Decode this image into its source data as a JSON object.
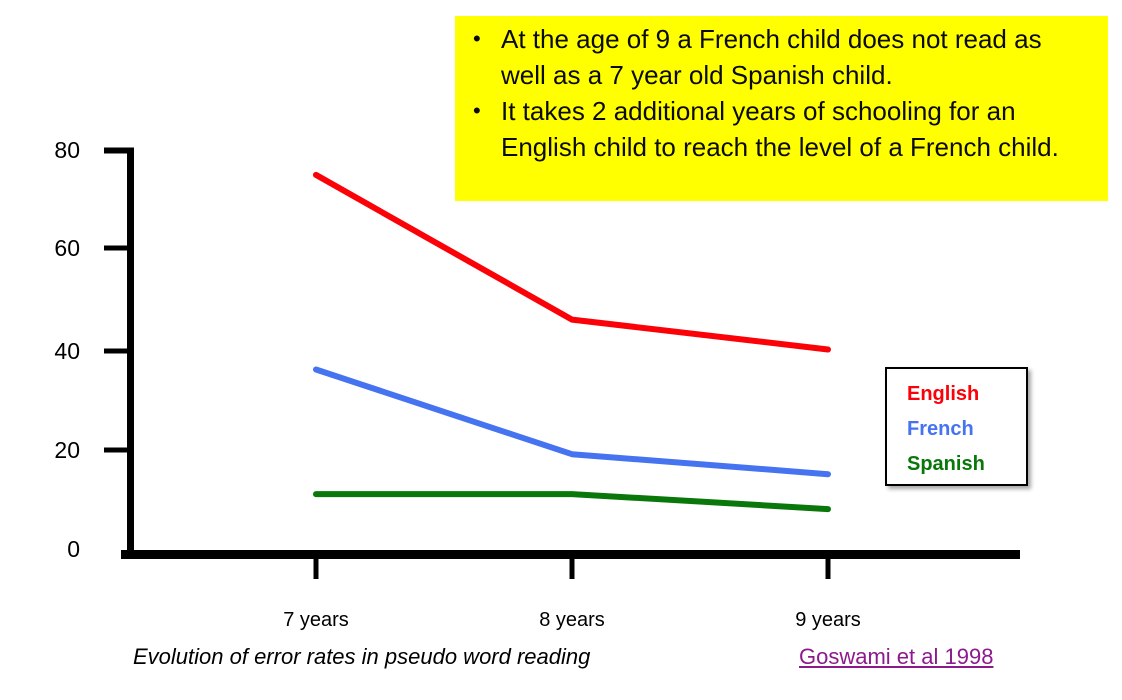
{
  "callout": {
    "bg_color": "#ffff00",
    "bullet_glyph": "•",
    "bullets": [
      "At the age of 9 a French child does not read as well as a 7 year old Spanish child.",
      "It takes 2 additional years of schooling for an English child to reach the level of a French child."
    ]
  },
  "chart_data": {
    "type": "line",
    "title": "",
    "caption": "Evolution of error rates in pseudo word reading",
    "x_categories": [
      "7 years",
      "8 years",
      "9 years"
    ],
    "series": [
      {
        "name": "English",
        "color": "#fa0208",
        "values": [
          75,
          46,
          40
        ]
      },
      {
        "name": "French",
        "color": "#4673f0",
        "values": [
          36,
          19,
          15
        ]
      },
      {
        "name": "Spanish",
        "color": "#097709",
        "values": [
          11,
          11,
          8
        ]
      }
    ],
    "y_ticks": [
      0,
      20,
      40,
      60,
      80
    ],
    "ylim": [
      0,
      80
    ],
    "grid": false,
    "legend_position": "right",
    "axis_color": "#000000"
  },
  "citation": {
    "label": "Goswami et al 1998",
    "color": "#8d1a8d"
  }
}
